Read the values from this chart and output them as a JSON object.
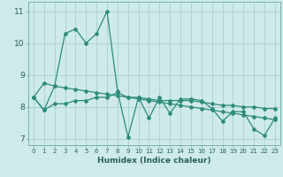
{
  "xlabel": "Humidex (Indice chaleur)",
  "ylabel": "",
  "bg_color": "#ceeaea",
  "grid_color": "#afd4d4",
  "line_color": "#2e8b7a",
  "xlim": [
    -0.5,
    23.5
  ],
  "ylim": [
    6.8,
    11.3
  ],
  "xtick_labels": [
    "0",
    "1",
    "2",
    "3",
    "4",
    "5",
    "6",
    "7",
    "8",
    "9",
    "10",
    "11",
    "12",
    "13",
    "14",
    "15",
    "16",
    "17",
    "18",
    "19",
    "20",
    "21",
    "22",
    "23"
  ],
  "yticks": [
    7,
    8,
    9,
    10,
    11
  ],
  "line1_x": [
    0,
    1,
    2,
    3,
    4,
    5,
    6,
    7,
    8,
    9,
    10,
    11,
    12,
    13,
    14,
    15,
    16,
    17,
    18,
    19,
    20,
    21,
    22,
    23
  ],
  "line1_y": [
    8.3,
    7.9,
    8.65,
    10.3,
    10.45,
    10.0,
    10.3,
    11.0,
    8.5,
    7.05,
    8.3,
    7.65,
    8.3,
    7.8,
    8.25,
    8.25,
    8.2,
    7.95,
    7.55,
    7.85,
    7.85,
    7.3,
    7.1,
    7.65
  ],
  "line2_x": [
    0,
    1,
    2,
    3,
    4,
    5,
    6,
    7,
    8,
    9,
    10,
    11,
    12,
    13,
    14,
    15,
    16,
    17,
    18,
    19,
    20,
    21,
    22,
    23
  ],
  "line2_y": [
    8.3,
    7.9,
    8.1,
    8.1,
    8.2,
    8.2,
    8.3,
    8.3,
    8.45,
    8.3,
    8.3,
    8.25,
    8.2,
    8.2,
    8.2,
    8.2,
    8.15,
    8.1,
    8.05,
    8.05,
    8.0,
    8.0,
    7.95,
    7.95
  ],
  "line3_x": [
    0,
    1,
    2,
    3,
    4,
    5,
    6,
    7,
    8,
    9,
    10,
    11,
    12,
    13,
    14,
    15,
    16,
    17,
    18,
    19,
    20,
    21,
    22,
    23
  ],
  "line3_y": [
    8.3,
    8.75,
    8.65,
    8.6,
    8.55,
    8.5,
    8.45,
    8.4,
    8.35,
    8.3,
    8.25,
    8.2,
    8.15,
    8.1,
    8.05,
    8.0,
    7.95,
    7.9,
    7.85,
    7.8,
    7.75,
    7.7,
    7.65,
    7.6
  ]
}
